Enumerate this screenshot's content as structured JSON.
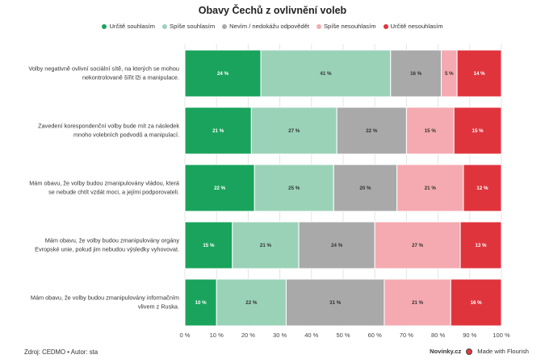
{
  "title": "Obavy Čechů z ovlivnění voleb",
  "chart_data": {
    "type": "bar",
    "orientation": "horizontal",
    "stacked": true,
    "categories": [
      "Volby negativně ovlivní sociální sítě, na kterých se mohou nekontrolovaně šířit lži a manipulace.",
      "Zavedení korespondenční volby bude mít za následek mnoho volebních podvodů a manipulací.",
      "Mám obavu, že volby budou zmanipulovány vládou, která se nebude chtít vzdát moci, a jejími podporovateli.",
      "Mám obavu, že volby budou zmanipulovány orgány Evropské unie, pokud jim nebudou výsledky vyhovovat.",
      "Mám obavu, že volby budou zmanipulovány informačním vlivem z Ruska."
    ],
    "series": [
      {
        "name": "Určitě souhlasím",
        "color": "#1aa35c",
        "label_color": "#ffffff",
        "values": [
          24,
          21,
          22,
          15,
          10
        ]
      },
      {
        "name": "Spíše souhlasím",
        "color": "#9ad2b8",
        "label_color": "#333333",
        "values": [
          41,
          27,
          25,
          21,
          22
        ]
      },
      {
        "name": "Nevím / nedokážu odpovědět",
        "color": "#a9a9a9",
        "label_color": "#333333",
        "values": [
          16,
          22,
          20,
          24,
          31
        ]
      },
      {
        "name": "Spíše nesouhlasím",
        "color": "#f4aab0",
        "label_color": "#333333",
        "values": [
          5,
          15,
          21,
          27,
          21
        ]
      },
      {
        "name": "Určitě nesouhlasím",
        "color": "#e0343d",
        "label_color": "#ffffff",
        "values": [
          14,
          15,
          12,
          13,
          16
        ]
      }
    ],
    "value_suffix": " %",
    "xlim": [
      0,
      100
    ],
    "x_ticks": [
      "0 %",
      "10 %",
      "20 %",
      "30 %",
      "40 %",
      "50 %",
      "60 %",
      "70 %",
      "80 %",
      "90 %",
      "100 %"
    ],
    "grid": true,
    "legend_position": "top"
  },
  "footer": {
    "source": "Zdroj: CEDMO • Autor: sta",
    "brand": "Novinky.cz",
    "made_with": "Made with Flourish"
  }
}
